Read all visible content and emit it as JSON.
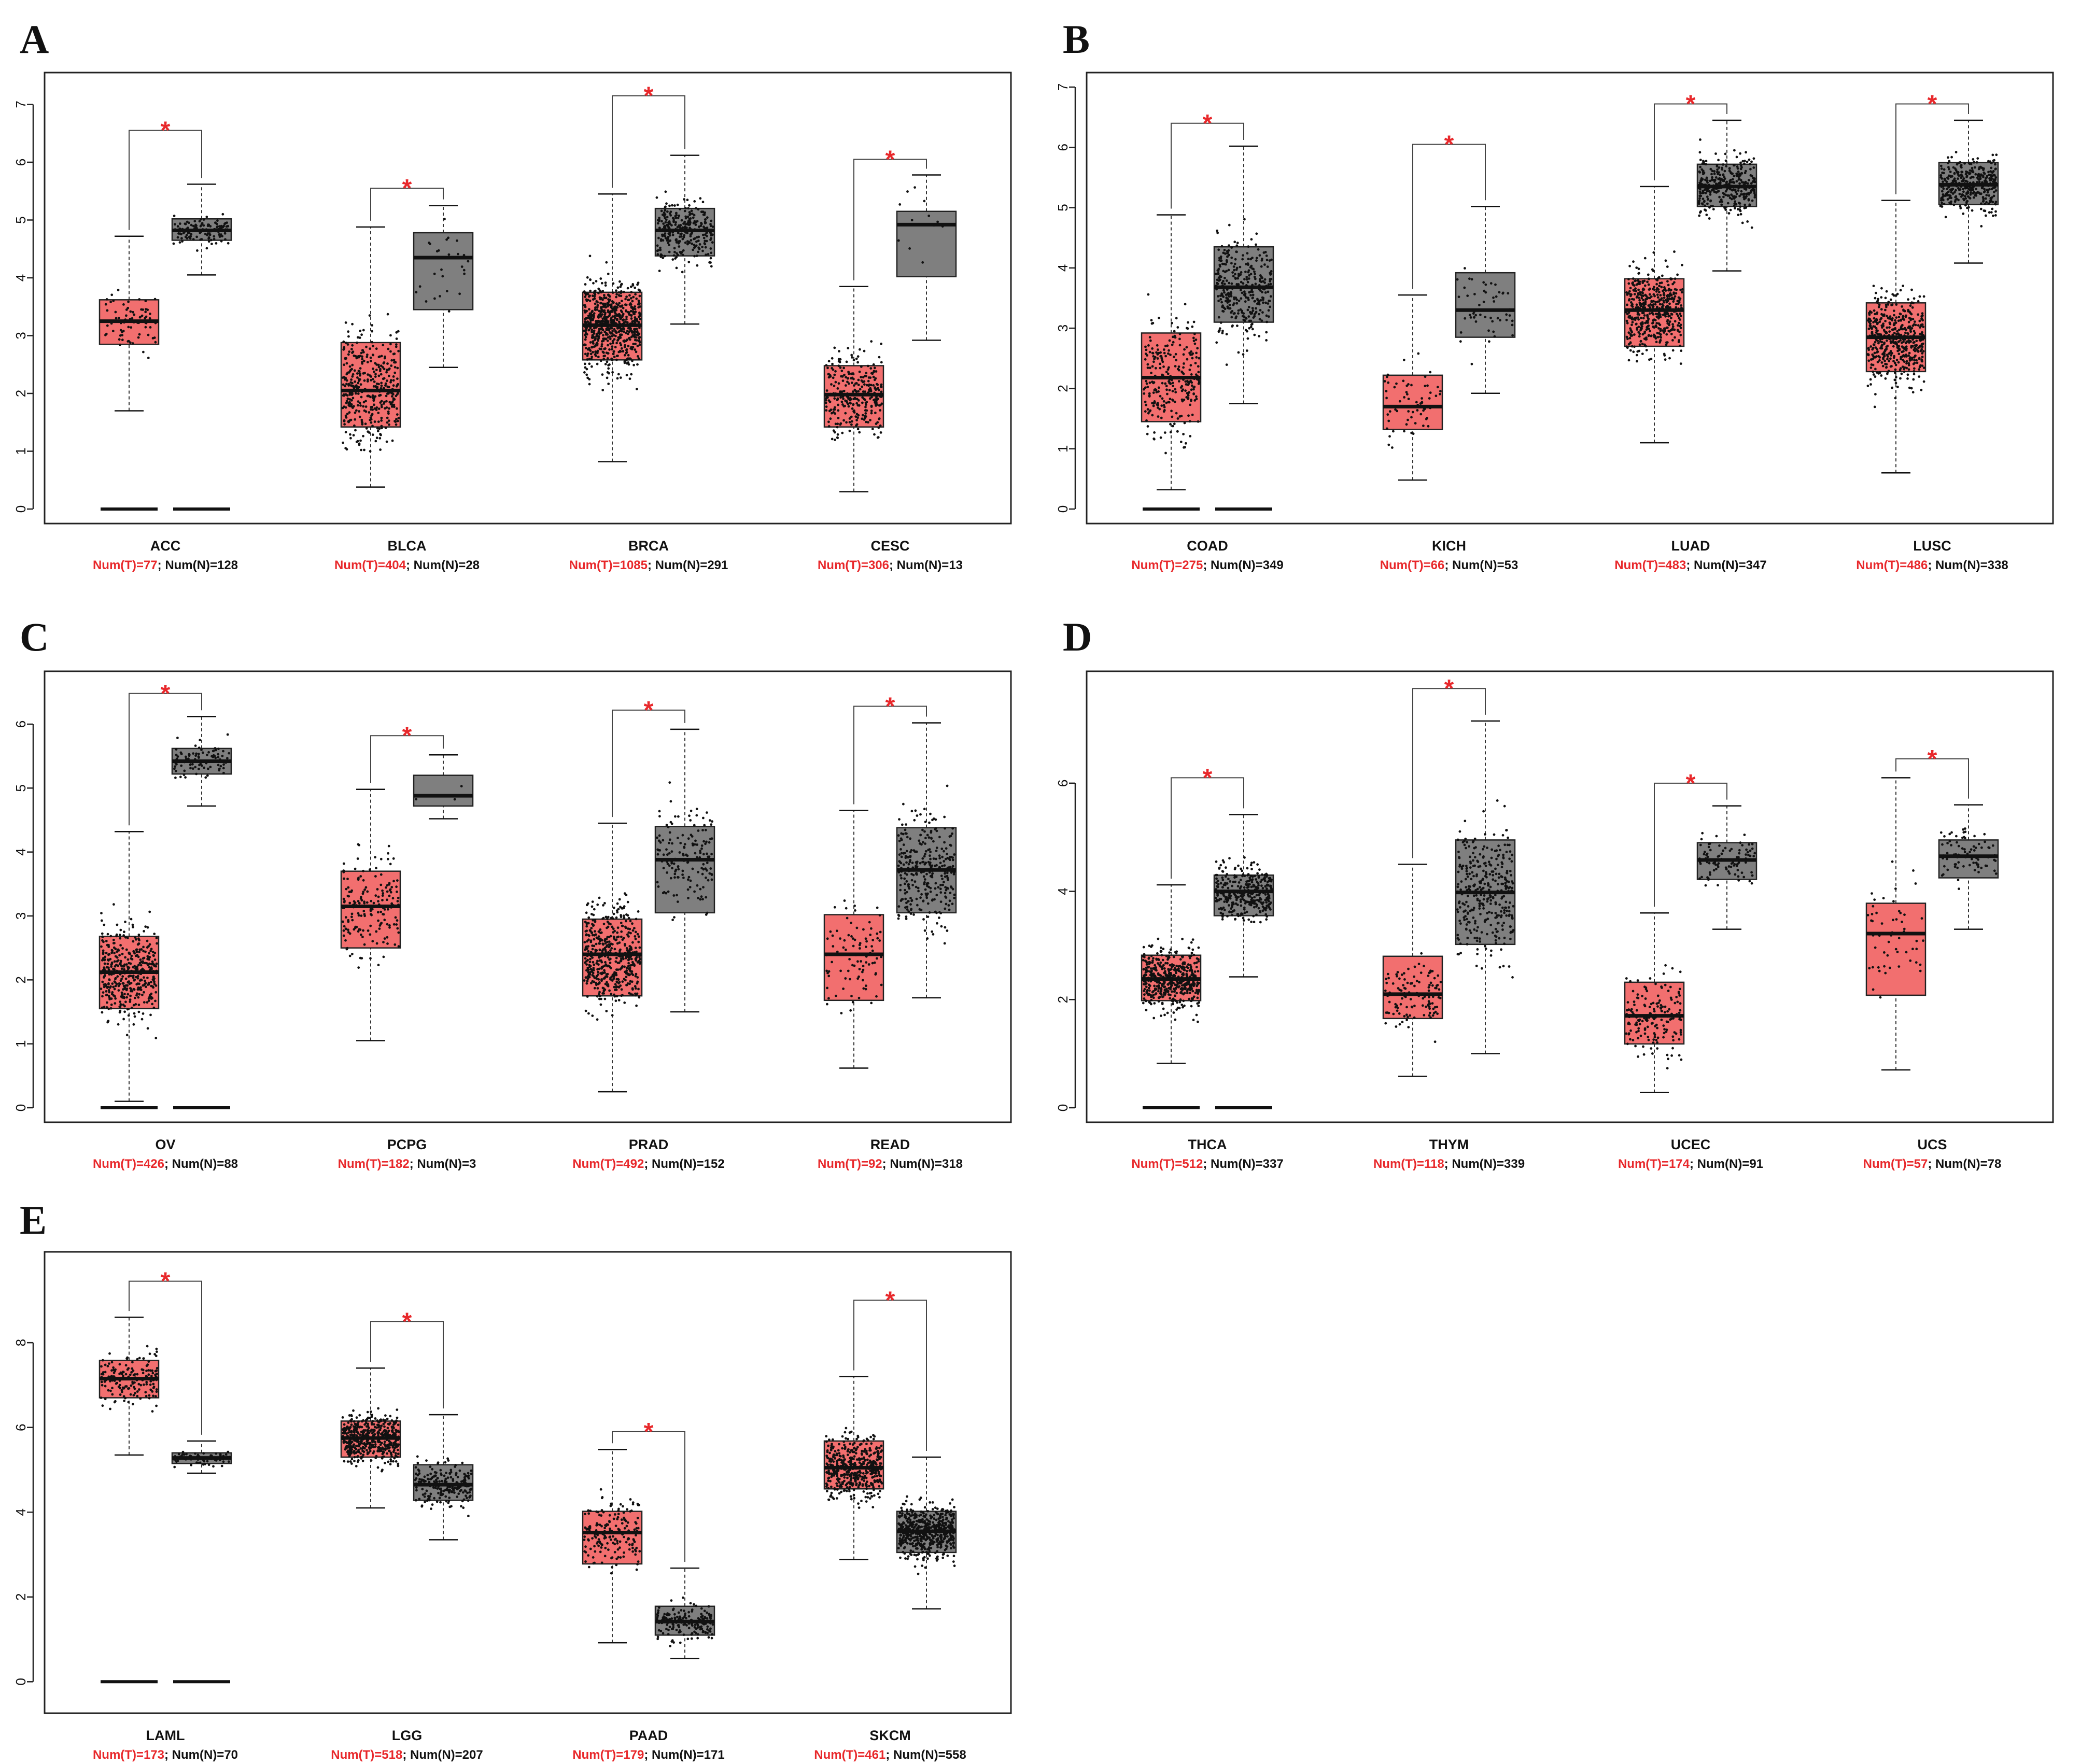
{
  "colors": {
    "tumor": "#f26f6f",
    "normal": "#7f7f7f",
    "star": "#e8282b",
    "frame": "#222222",
    "text": "#111111"
  },
  "chart_data": [
    {
      "panel": "A",
      "type": "box",
      "ylim": [
        0,
        7.3
      ],
      "yticks": [
        0,
        1,
        2,
        3,
        4,
        5,
        6,
        7
      ],
      "groups": [
        {
          "category": "ACC",
          "tumor_label": "Num(T)=77",
          "normal_label": "Num(N)=128",
          "tumor": {
            "q1": 2.85,
            "median": 3.25,
            "q3": 3.62,
            "lo": 1.7,
            "hi": 4.72,
            "n": 77
          },
          "normal": {
            "q1": 4.65,
            "median": 4.82,
            "q3": 5.02,
            "lo": 4.05,
            "hi": 5.62,
            "n": 128
          },
          "zero_lines": true,
          "sig": "*",
          "sig_y": 6.55
        },
        {
          "category": "BLCA",
          "tumor_label": "Num(T)=404",
          "normal_label": "Num(N)=28",
          "tumor": {
            "q1": 1.42,
            "median": 2.05,
            "q3": 2.88,
            "lo": 0.38,
            "hi": 4.88,
            "n": 404
          },
          "normal": {
            "q1": 3.45,
            "median": 4.35,
            "q3": 4.78,
            "lo": 2.45,
            "hi": 5.25,
            "n": 28
          },
          "zero_lines": false,
          "sig": "*",
          "sig_y": 5.55
        },
        {
          "category": "BRCA",
          "tumor_label": "Num(T)=1085",
          "normal_label": "Num(N)=291",
          "tumor": {
            "q1": 2.58,
            "median": 3.18,
            "q3": 3.75,
            "lo": 0.82,
            "hi": 5.45,
            "n": 1085
          },
          "normal": {
            "q1": 4.38,
            "median": 4.82,
            "q3": 5.2,
            "lo": 3.2,
            "hi": 6.12,
            "n": 291
          },
          "zero_lines": false,
          "sig": "*",
          "sig_y": 7.15
        },
        {
          "category": "CESC",
          "tumor_label": "Num(T)=306",
          "normal_label": "Num(N)=13",
          "tumor": {
            "q1": 1.42,
            "median": 1.98,
            "q3": 2.48,
            "lo": 0.3,
            "hi": 3.85,
            "n": 306
          },
          "normal": {
            "q1": 4.02,
            "median": 4.92,
            "q3": 5.15,
            "lo": 2.92,
            "hi": 5.78,
            "n": 13
          },
          "zero_lines": false,
          "sig": "*",
          "sig_y": 6.05
        }
      ]
    },
    {
      "panel": "B",
      "type": "box",
      "ylim": [
        0,
        7.0
      ],
      "yticks": [
        0,
        1,
        2,
        3,
        4,
        5,
        6,
        7
      ],
      "groups": [
        {
          "category": "COAD",
          "tumor_label": "Num(T)=275",
          "normal_label": "Num(N)=349",
          "tumor": {
            "q1": 1.45,
            "median": 2.18,
            "q3": 2.92,
            "lo": 0.32,
            "hi": 4.88,
            "n": 275
          },
          "normal": {
            "q1": 3.1,
            "median": 3.68,
            "q3": 4.35,
            "lo": 1.75,
            "hi": 6.02,
            "n": 349
          },
          "zero_lines": true,
          "sig": "*",
          "sig_y": 6.4
        },
        {
          "category": "KICH",
          "tumor_label": "Num(T)=66",
          "normal_label": "Num(N)=53",
          "tumor": {
            "q1": 1.32,
            "median": 1.7,
            "q3": 2.22,
            "lo": 0.48,
            "hi": 3.55,
            "n": 66
          },
          "normal": {
            "q1": 2.85,
            "median": 3.3,
            "q3": 3.92,
            "lo": 1.92,
            "hi": 5.02,
            "n": 53
          },
          "zero_lines": false,
          "sig": "*",
          "sig_y": 6.05
        },
        {
          "category": "LUAD",
          "tumor_label": "Num(T)=483",
          "normal_label": "Num(N)=347",
          "tumor": {
            "q1": 2.7,
            "median": 3.3,
            "q3": 3.82,
            "lo": 1.1,
            "hi": 5.35,
            "n": 483
          },
          "normal": {
            "q1": 5.02,
            "median": 5.35,
            "q3": 5.72,
            "lo": 3.95,
            "hi": 6.45,
            "n": 347
          },
          "zero_lines": false,
          "sig": "*",
          "sig_y": 6.72
        },
        {
          "category": "LUSC",
          "tumor_label": "Num(T)=486",
          "normal_label": "Num(N)=338",
          "tumor": {
            "q1": 2.28,
            "median": 2.85,
            "q3": 3.42,
            "lo": 0.6,
            "hi": 5.12,
            "n": 486
          },
          "normal": {
            "q1": 5.05,
            "median": 5.38,
            "q3": 5.75,
            "lo": 4.08,
            "hi": 6.45,
            "n": 338
          },
          "zero_lines": false,
          "sig": "*",
          "sig_y": 6.72
        }
      ]
    },
    {
      "panel": "C",
      "type": "box",
      "ylim": [
        0,
        6.6
      ],
      "yticks": [
        0,
        1,
        2,
        3,
        4,
        5,
        6
      ],
      "groups": [
        {
          "category": "OV",
          "tumor_label": "Num(T)=426",
          "normal_label": "Num(N)=88",
          "tumor": {
            "q1": 1.55,
            "median": 2.12,
            "q3": 2.68,
            "lo": 0.1,
            "hi": 4.32,
            "n": 426
          },
          "normal": {
            "q1": 5.22,
            "median": 5.42,
            "q3": 5.62,
            "lo": 4.72,
            "hi": 6.12,
            "n": 88
          },
          "zero_lines": true,
          "sig": "*",
          "sig_y": 6.48
        },
        {
          "category": "PCPG",
          "tumor_label": "Num(T)=182",
          "normal_label": "Num(N)=3",
          "tumor": {
            "q1": 2.5,
            "median": 3.15,
            "q3": 3.7,
            "lo": 1.05,
            "hi": 4.98,
            "n": 182
          },
          "normal": {
            "q1": 4.72,
            "median": 4.88,
            "q3": 5.2,
            "lo": 4.52,
            "hi": 5.52,
            "n": 3
          },
          "zero_lines": false,
          "sig": "*",
          "sig_y": 5.82
        },
        {
          "category": "PRAD",
          "tumor_label": "Num(T)=492",
          "normal_label": "Num(N)=152",
          "tumor": {
            "q1": 1.75,
            "median": 2.4,
            "q3": 2.95,
            "lo": 0.25,
            "hi": 4.45,
            "n": 492
          },
          "normal": {
            "q1": 3.05,
            "median": 3.88,
            "q3": 4.4,
            "lo": 1.5,
            "hi": 5.92,
            "n": 152
          },
          "zero_lines": false,
          "sig": "*",
          "sig_y": 6.22
        },
        {
          "category": "READ",
          "tumor_label": "Num(T)=92",
          "normal_label": "Num(N)=318",
          "tumor": {
            "q1": 1.68,
            "median": 2.4,
            "q3": 3.02,
            "lo": 0.62,
            "hi": 4.65,
            "n": 92
          },
          "normal": {
            "q1": 3.05,
            "median": 3.72,
            "q3": 4.38,
            "lo": 1.72,
            "hi": 6.02,
            "n": 318
          },
          "zero_lines": false,
          "sig": "*",
          "sig_y": 6.28
        }
      ]
    },
    {
      "panel": "D",
      "type": "box",
      "ylim": [
        0,
        7.8
      ],
      "yticks": [
        0,
        2,
        4,
        6
      ],
      "groups": [
        {
          "category": "THCA",
          "tumor_label": "Num(T)=512",
          "normal_label": "Num(N)=337",
          "tumor": {
            "q1": 1.98,
            "median": 2.38,
            "q3": 2.82,
            "lo": 0.82,
            "hi": 4.12,
            "n": 512
          },
          "normal": {
            "q1": 3.55,
            "median": 4.0,
            "q3": 4.3,
            "lo": 2.42,
            "hi": 5.42,
            "n": 337
          },
          "zero_lines": true,
          "sig": "*",
          "sig_y": 6.1
        },
        {
          "category": "THYM",
          "tumor_label": "Num(T)=118",
          "normal_label": "Num(N)=339",
          "tumor": {
            "q1": 1.65,
            "median": 2.1,
            "q3": 2.8,
            "lo": 0.58,
            "hi": 4.5,
            "n": 118
          },
          "normal": {
            "q1": 3.02,
            "median": 3.98,
            "q3": 4.95,
            "lo": 1.0,
            "hi": 7.15,
            "n": 339
          },
          "zero_lines": false,
          "sig": "*",
          "sig_y": 7.75
        },
        {
          "category": "UCEC",
          "tumor_label": "Num(T)=174",
          "normal_label": "Num(N)=91",
          "tumor": {
            "q1": 1.18,
            "median": 1.7,
            "q3": 2.32,
            "lo": 0.28,
            "hi": 3.6,
            "n": 174
          },
          "normal": {
            "q1": 4.22,
            "median": 4.58,
            "q3": 4.9,
            "lo": 3.3,
            "hi": 5.58,
            "n": 91
          },
          "zero_lines": false,
          "sig": "*",
          "sig_y": 6.0
        },
        {
          "category": "UCS",
          "tumor_label": "Num(T)=57",
          "normal_label": "Num(N)=78",
          "tumor": {
            "q1": 2.08,
            "median": 3.22,
            "q3": 3.78,
            "lo": 0.7,
            "hi": 6.1,
            "n": 57
          },
          "normal": {
            "q1": 4.25,
            "median": 4.65,
            "q3": 4.95,
            "lo": 3.3,
            "hi": 5.6,
            "n": 78
          },
          "zero_lines": false,
          "sig": "*",
          "sig_y": 6.45
        }
      ]
    },
    {
      "panel": "E",
      "type": "box",
      "ylim": [
        -0.4,
        9.8
      ],
      "yticks": [
        0,
        2,
        4,
        6,
        8
      ],
      "groups": [
        {
          "category": "LAML",
          "tumor_label": "Num(T)=173",
          "normal_label": "Num(N)=70",
          "tumor": {
            "q1": 6.7,
            "median": 7.15,
            "q3": 7.58,
            "lo": 5.35,
            "hi": 8.6,
            "n": 173
          },
          "normal": {
            "q1": 5.15,
            "median": 5.28,
            "q3": 5.4,
            "lo": 4.92,
            "hi": 5.68,
            "n": 70
          },
          "zero_lines": true,
          "sig": "*",
          "sig_y": 9.45
        },
        {
          "category": "LGG",
          "tumor_label": "Num(T)=518",
          "normal_label": "Num(N)=207",
          "tumor": {
            "q1": 5.3,
            "median": 5.75,
            "q3": 6.15,
            "lo": 4.1,
            "hi": 7.4,
            "n": 518
          },
          "normal": {
            "q1": 4.28,
            "median": 4.65,
            "q3": 5.12,
            "lo": 3.35,
            "hi": 6.3,
            "n": 207
          },
          "zero_lines": false,
          "sig": "*",
          "sig_y": 8.5
        },
        {
          "category": "PAAD",
          "tumor_label": "Num(T)=179",
          "normal_label": "Num(N)=171",
          "tumor": {
            "q1": 2.78,
            "median": 3.52,
            "q3": 4.02,
            "lo": 0.92,
            "hi": 5.48,
            "n": 179
          },
          "normal": {
            "q1": 1.1,
            "median": 1.42,
            "q3": 1.78,
            "lo": 0.55,
            "hi": 2.68,
            "n": 171
          },
          "zero_lines": false,
          "sig": "*",
          "sig_y": 5.9
        },
        {
          "category": "SKCM",
          "tumor_label": "Num(T)=461",
          "normal_label": "Num(N)=558",
          "tumor": {
            "q1": 4.55,
            "median": 5.05,
            "q3": 5.68,
            "lo": 2.88,
            "hi": 7.2,
            "n": 461
          },
          "normal": {
            "q1": 3.05,
            "median": 3.55,
            "q3": 4.02,
            "lo": 1.72,
            "hi": 5.3,
            "n": 558
          },
          "zero_lines": false,
          "sig": "*",
          "sig_y": 9.0
        }
      ]
    }
  ]
}
